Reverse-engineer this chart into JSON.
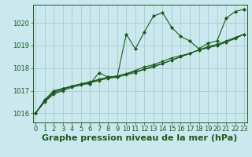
{
  "xlabel": "Graphe pression niveau de la mer (hPa)",
  "ylabel": "",
  "bg_color": "#cce8ef",
  "grid_color": "#aacccc",
  "line_color": "#1a5c1a",
  "marker_color": "#1a5c1a",
  "x_ticks": [
    0,
    1,
    2,
    3,
    4,
    5,
    6,
    7,
    8,
    9,
    10,
    11,
    12,
    13,
    14,
    15,
    16,
    17,
    18,
    19,
    20,
    21,
    22,
    23
  ],
  "y_ticks": [
    1016,
    1017,
    1018,
    1019,
    1020
  ],
  "ylim": [
    1015.6,
    1020.8
  ],
  "xlim": [
    -0.3,
    23.3
  ],
  "series": [
    [
      1016.0,
      1016.6,
      1017.0,
      1017.1,
      1017.2,
      1017.3,
      1017.3,
      1017.8,
      1017.6,
      1017.6,
      1019.5,
      1018.85,
      1019.6,
      1020.3,
      1020.45,
      1019.8,
      1019.4,
      1019.2,
      1018.85,
      1019.1,
      1019.2,
      1020.2,
      1020.5,
      1020.6
    ],
    [
      1016.0,
      1016.55,
      1016.95,
      1017.1,
      1017.2,
      1017.3,
      1017.35,
      1017.5,
      1017.6,
      1017.65,
      1017.75,
      1017.9,
      1018.05,
      1018.15,
      1018.3,
      1018.45,
      1018.55,
      1018.65,
      1018.8,
      1018.9,
      1019.0,
      1019.15,
      1019.35,
      1019.5
    ],
    [
      1016.0,
      1016.55,
      1016.9,
      1017.05,
      1017.2,
      1017.3,
      1017.4,
      1017.5,
      1017.6,
      1017.65,
      1017.75,
      1017.85,
      1017.95,
      1018.1,
      1018.2,
      1018.35,
      1018.5,
      1018.65,
      1018.8,
      1018.95,
      1019.05,
      1019.2,
      1019.35,
      1019.5
    ],
    [
      1016.0,
      1016.5,
      1016.85,
      1017.0,
      1017.15,
      1017.25,
      1017.35,
      1017.45,
      1017.55,
      1017.6,
      1017.7,
      1017.8,
      1017.95,
      1018.05,
      1018.2,
      1018.35,
      1018.5,
      1018.65,
      1018.8,
      1018.9,
      1019.0,
      1019.15,
      1019.3,
      1019.5
    ]
  ],
  "xlabel_fontsize": 8,
  "tick_fontsize": 6,
  "xlabel_color": "#1a5c1a",
  "xlabel_bold": true
}
